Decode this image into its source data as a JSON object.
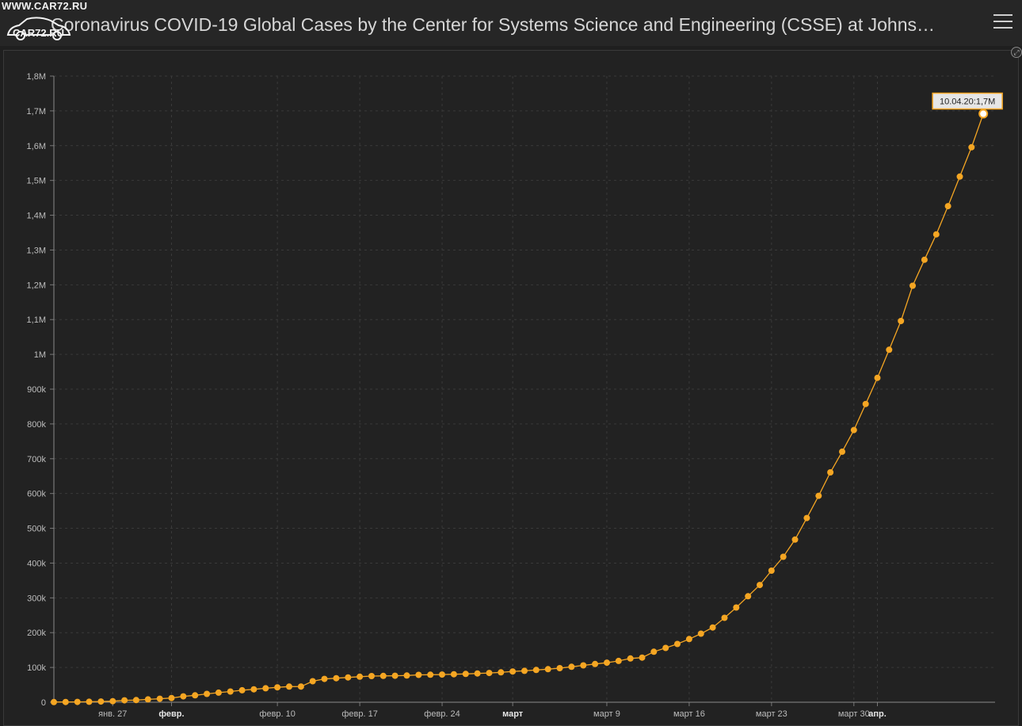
{
  "header": {
    "title": "Coronavirus COVID-19 Global Cases by the Center for Systems Science and Engineering (CSSE) at Johns…",
    "menu_icon": "hamburger-menu-icon"
  },
  "watermark": {
    "url": "WWW.CAR72.RU",
    "name": "CAR72.RU"
  },
  "colors": {
    "background": "#1f1f1f",
    "series": "#f5a623",
    "axis_text": "#bdbdbd",
    "grid": "#3a3a3a"
  },
  "chart_data": {
    "type": "line",
    "ylim": [
      0,
      1800000
    ],
    "y_ticks": [
      {
        "value": 0,
        "label": "0"
      },
      {
        "value": 100000,
        "label": "100k"
      },
      {
        "value": 200000,
        "label": "200k"
      },
      {
        "value": 300000,
        "label": "300k"
      },
      {
        "value": 400000,
        "label": "400k"
      },
      {
        "value": 500000,
        "label": "500k"
      },
      {
        "value": 600000,
        "label": "600k"
      },
      {
        "value": 700000,
        "label": "700k"
      },
      {
        "value": 800000,
        "label": "800k"
      },
      {
        "value": 900000,
        "label": "900k"
      },
      {
        "value": 1000000,
        "label": "1M"
      },
      {
        "value": 1100000,
        "label": "1,1M"
      },
      {
        "value": 1200000,
        "label": "1,2M"
      },
      {
        "value": 1300000,
        "label": "1,3M"
      },
      {
        "value": 1400000,
        "label": "1,4M"
      },
      {
        "value": 1500000,
        "label": "1,5M"
      },
      {
        "value": 1600000,
        "label": "1,6M"
      },
      {
        "value": 1700000,
        "label": "1,7M"
      },
      {
        "value": 1800000,
        "label": "1,8M"
      }
    ],
    "x_ticks": [
      {
        "date": "2020-01-27",
        "label": "янв. 27",
        "bold": false
      },
      {
        "date": "2020-02-01",
        "label": "февр.",
        "bold": true
      },
      {
        "date": "2020-02-10",
        "label": "февр. 10",
        "bold": false
      },
      {
        "date": "2020-02-17",
        "label": "февр. 17",
        "bold": false
      },
      {
        "date": "2020-02-24",
        "label": "февр. 24",
        "bold": false
      },
      {
        "date": "2020-03-01",
        "label": "март",
        "bold": true
      },
      {
        "date": "2020-03-09",
        "label": "март 9",
        "bold": false
      },
      {
        "date": "2020-03-16",
        "label": "март 16",
        "bold": false
      },
      {
        "date": "2020-03-23",
        "label": "март 23",
        "bold": false
      },
      {
        "date": "2020-03-30",
        "label": "март 30",
        "bold": false
      },
      {
        "date": "2020-04-01",
        "label": "апр.",
        "bold": true
      }
    ],
    "x_range": [
      "2020-01-22",
      "2020-04-11"
    ],
    "x": [
      "2020-01-22",
      "2020-01-23",
      "2020-01-24",
      "2020-01-25",
      "2020-01-26",
      "2020-01-27",
      "2020-01-28",
      "2020-01-29",
      "2020-01-30",
      "2020-01-31",
      "2020-02-01",
      "2020-02-02",
      "2020-02-03",
      "2020-02-04",
      "2020-02-05",
      "2020-02-06",
      "2020-02-07",
      "2020-02-08",
      "2020-02-09",
      "2020-02-10",
      "2020-02-11",
      "2020-02-12",
      "2020-02-13",
      "2020-02-14",
      "2020-02-15",
      "2020-02-16",
      "2020-02-17",
      "2020-02-18",
      "2020-02-19",
      "2020-02-20",
      "2020-02-21",
      "2020-02-22",
      "2020-02-23",
      "2020-02-24",
      "2020-02-25",
      "2020-02-26",
      "2020-02-27",
      "2020-02-28",
      "2020-02-29",
      "2020-03-01",
      "2020-03-02",
      "2020-03-03",
      "2020-03-04",
      "2020-03-05",
      "2020-03-06",
      "2020-03-07",
      "2020-03-08",
      "2020-03-09",
      "2020-03-10",
      "2020-03-11",
      "2020-03-12",
      "2020-03-13",
      "2020-03-14",
      "2020-03-15",
      "2020-03-16",
      "2020-03-17",
      "2020-03-18",
      "2020-03-19",
      "2020-03-20",
      "2020-03-21",
      "2020-03-22",
      "2020-03-23",
      "2020-03-24",
      "2020-03-25",
      "2020-03-26",
      "2020-03-27",
      "2020-03-28",
      "2020-03-29",
      "2020-03-30",
      "2020-03-31",
      "2020-04-01",
      "2020-04-02",
      "2020-04-03",
      "2020-04-04",
      "2020-04-05",
      "2020-04-06",
      "2020-04-07",
      "2020-04-08",
      "2020-04-09",
      "2020-04-10"
    ],
    "series": [
      {
        "values": [
          555,
          654,
          941,
          1434,
          2118,
          2927,
          5578,
          6166,
          8234,
          9927,
          12038,
          16787,
          19881,
          23892,
          27635,
          30794,
          34391,
          37120,
          40150,
          42762,
          44802,
          45221,
          60368,
          66885,
          69030,
          71224,
          73258,
          75136,
          75639,
          76197,
          76819,
          78572,
          78958,
          79561,
          80406,
          81388,
          82746,
          84112,
          86011,
          88369,
          90306,
          92840,
          95120,
          97886,
          101801,
          105847,
          109821,
          113590,
          118620,
          125875,
          128343,
          145193,
          156097,
          167449,
          181546,
          197168,
          214915,
          242713,
          272167,
          304528,
          336953,
          378235,
          418045,
          467653,
          529591,
          593291,
          660706,
          720117,
          782365,
          857487,
          932605,
          1013157,
          1095917,
          1197405,
          1272115,
          1345048,
          1426096,
          1511104,
          1595350,
          1691719
        ]
      }
    ],
    "tooltip": {
      "label": "10.04.20:1,7M"
    },
    "grid": true
  }
}
